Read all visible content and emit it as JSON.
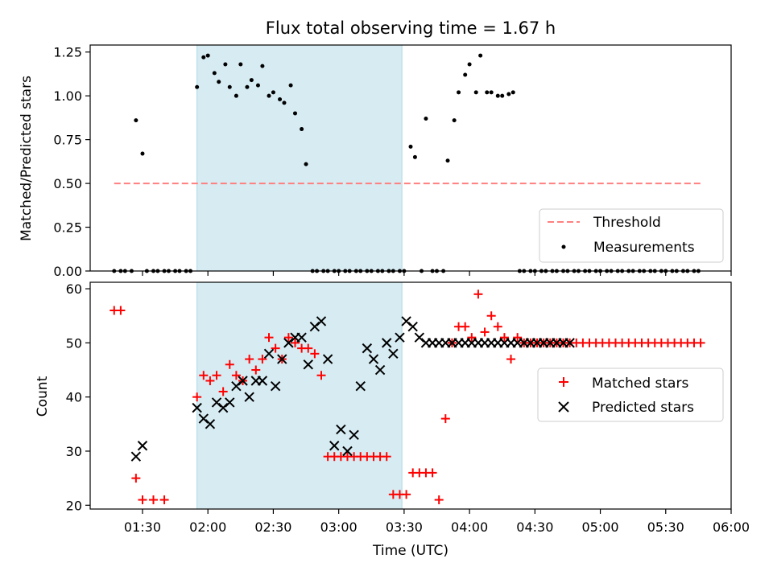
{
  "chart_data": [
    {
      "type": "scatter",
      "title": "Flux total observing time = 1.67 h",
      "xlabel": "",
      "ylabel": "Matched/Predicted stars",
      "ylim": [
        0,
        1.29
      ],
      "yticks": [
        "0.00",
        "0.25",
        "0.50",
        "0.75",
        "1.00",
        "1.25"
      ],
      "xaxis_ticklabels_visible": false,
      "legend_position": "lower right",
      "shaded_span": {
        "start": "01:55",
        "end": "03:29",
        "color": "#add8e6"
      },
      "threshold": {
        "name": "Threshold",
        "value": 0.5,
        "x_start": "01:17",
        "x_end": "05:46",
        "color": "#ff7f7f",
        "style": "dashed"
      },
      "series": [
        {
          "name": "Measurements",
          "marker": "dot",
          "color": "#000000",
          "x": [
            "01:17",
            "01:20",
            "01:22",
            "01:25",
            "01:27",
            "01:30",
            "01:32",
            "01:35",
            "01:37",
            "01:40",
            "01:42",
            "01:45",
            "01:47",
            "01:50",
            "01:52",
            "01:55",
            "01:58",
            "02:00",
            "02:03",
            "02:05",
            "02:08",
            "02:10",
            "02:13",
            "02:15",
            "02:18",
            "02:20",
            "02:23",
            "02:25",
            "02:28",
            "02:30",
            "02:33",
            "02:35",
            "02:38",
            "02:40",
            "02:43",
            "02:45",
            "02:48",
            "02:50",
            "02:53",
            "02:55",
            "02:58",
            "03:00",
            "03:03",
            "03:05",
            "03:08",
            "03:10",
            "03:13",
            "03:15",
            "03:18",
            "03:20",
            "03:23",
            "03:25",
            "03:28",
            "03:30",
            "03:33",
            "03:35",
            "03:38",
            "03:40",
            "03:43",
            "03:45",
            "03:48",
            "03:50",
            "03:53",
            "03:55",
            "03:58",
            "04:00",
            "04:03",
            "04:05",
            "04:08",
            "04:10",
            "04:13",
            "04:15",
            "04:18",
            "04:20",
            "04:23",
            "04:25",
            "04:28",
            "04:30",
            "04:33",
            "04:35",
            "04:38",
            "04:40",
            "04:43",
            "04:45",
            "04:48",
            "04:50",
            "04:53",
            "04:55",
            "04:58",
            "05:00",
            "05:03",
            "05:05",
            "05:08",
            "05:10",
            "05:13",
            "05:15",
            "05:18",
            "05:20",
            "05:23",
            "05:25",
            "05:28",
            "05:30",
            "05:33",
            "05:35",
            "05:38",
            "05:40",
            "05:43",
            "05:45"
          ],
          "y": [
            0.0,
            0.0,
            0.0,
            0.0,
            0.86,
            0.67,
            0.0,
            0.0,
            0.0,
            0.0,
            0.0,
            0.0,
            0.0,
            0.0,
            0.0,
            1.05,
            1.22,
            1.23,
            1.13,
            1.08,
            1.18,
            1.05,
            1.0,
            1.18,
            1.05,
            1.09,
            1.06,
            1.17,
            1.0,
            1.02,
            0.98,
            0.96,
            1.06,
            0.9,
            0.81,
            0.61,
            0.0,
            0.0,
            0.0,
            0.0,
            0.0,
            0.0,
            0.0,
            0.0,
            0.0,
            0.0,
            0.0,
            0.0,
            0.0,
            0.0,
            0.0,
            0.0,
            0.0,
            0.0,
            0.71,
            0.65,
            0.0,
            0.87,
            0.0,
            0.0,
            0.0,
            0.63,
            0.86,
            1.02,
            1.12,
            1.18,
            1.02,
            1.23,
            1.02,
            1.02,
            1.0,
            1.0,
            1.01,
            1.02,
            0.0,
            0.0,
            0.0,
            0.0,
            0.0,
            0.0,
            0.0,
            0.0,
            0.0,
            0.0,
            0.0,
            0.0,
            0.0,
            0.0,
            0.0,
            0.0,
            0.0,
            0.0,
            0.0,
            0.0,
            0.0,
            0.0,
            0.0,
            0.0,
            0.0,
            0.0,
            0.0,
            0.0,
            0.0,
            0.0,
            0.0,
            0.0,
            0.0,
            0.0
          ]
        }
      ]
    },
    {
      "type": "scatter",
      "title": "",
      "xlabel": "Time (UTC)",
      "ylabel": "Count",
      "ylim": [
        19.3,
        61.2
      ],
      "yticks": [
        "20",
        "30",
        "40",
        "50",
        "60"
      ],
      "xticks": [
        "01:30",
        "02:00",
        "02:30",
        "03:00",
        "03:30",
        "04:00",
        "04:30",
        "05:00",
        "05:30",
        "06:00"
      ],
      "xlim": [
        "01:06",
        "06:00"
      ],
      "legend_position": "center right",
      "shaded_span": {
        "start": "01:55",
        "end": "03:29",
        "color": "#add8e6"
      },
      "series": [
        {
          "name": "Matched stars",
          "marker": "plus",
          "color": "#ff0000",
          "x": [
            "01:17",
            "01:20",
            "01:27",
            "01:30",
            "01:35",
            "01:40",
            "01:55",
            "01:58",
            "02:01",
            "02:04",
            "02:07",
            "02:10",
            "02:13",
            "02:16",
            "02:19",
            "02:22",
            "02:25",
            "02:28",
            "02:31",
            "02:34",
            "02:37",
            "02:40",
            "02:43",
            "02:46",
            "02:49",
            "02:52",
            "02:55",
            "02:58",
            "03:01",
            "03:04",
            "03:07",
            "03:10",
            "03:13",
            "03:16",
            "03:19",
            "03:22",
            "03:25",
            "03:28",
            "03:31",
            "03:34",
            "03:37",
            "03:40",
            "03:43",
            "03:46",
            "03:49",
            "03:52",
            "03:55",
            "03:58",
            "04:01",
            "04:04",
            "04:07",
            "04:10",
            "04:13",
            "04:16",
            "04:19",
            "04:22",
            "04:25",
            "04:28",
            "04:31",
            "04:34",
            "04:37",
            "04:40",
            "04:43",
            "04:46",
            "04:49",
            "04:52",
            "04:55",
            "04:58",
            "05:01",
            "05:04",
            "05:07",
            "05:10",
            "05:13",
            "05:16",
            "05:19",
            "05:22",
            "05:25",
            "05:28",
            "05:31",
            "05:34",
            "05:37",
            "05:40",
            "05:43",
            "05:46"
          ],
          "y": [
            56,
            56,
            25,
            21,
            21,
            21,
            40,
            44,
            43,
            44,
            41,
            46,
            44,
            43,
            47,
            45,
            47,
            51,
            49,
            47,
            51,
            50,
            49,
            49,
            48,
            44,
            29,
            29,
            29,
            29,
            29,
            29,
            29,
            29,
            29,
            29,
            22,
            22,
            22,
            26,
            26,
            26,
            26,
            21,
            36,
            50,
            53,
            53,
            51,
            59,
            52,
            55,
            53,
            51,
            47,
            51,
            50,
            50,
            50,
            50,
            50,
            50,
            50,
            50,
            50,
            50,
            50,
            50,
            50,
            50,
            50,
            50,
            50,
            50,
            50,
            50,
            50,
            50,
            50,
            50,
            50,
            50,
            50,
            50
          ]
        },
        {
          "name": "Predicted stars",
          "marker": "x",
          "color": "#000000",
          "x": [
            "01:27",
            "01:30",
            "01:55",
            "01:58",
            "02:01",
            "02:04",
            "02:07",
            "02:10",
            "02:13",
            "02:16",
            "02:19",
            "02:22",
            "02:25",
            "02:28",
            "02:31",
            "02:34",
            "02:37",
            "02:40",
            "02:43",
            "02:46",
            "02:49",
            "02:52",
            "02:55",
            "02:58",
            "03:01",
            "03:04",
            "03:07",
            "03:10",
            "03:13",
            "03:16",
            "03:19",
            "03:22",
            "03:25",
            "03:28",
            "03:31",
            "03:34",
            "03:37",
            "03:40",
            "03:43",
            "03:46",
            "03:49",
            "03:52",
            "03:55",
            "03:58",
            "04:01",
            "04:04",
            "04:07",
            "04:10",
            "04:13",
            "04:16",
            "04:19",
            "04:22",
            "04:25",
            "04:28",
            "04:31",
            "04:34",
            "04:37",
            "04:40",
            "04:43",
            "04:46"
          ],
          "y": [
            29,
            31,
            38,
            36,
            35,
            39,
            38,
            39,
            42,
            43,
            40,
            43,
            43,
            48,
            42,
            47,
            50,
            51,
            51,
            46,
            53,
            54,
            47,
            31,
            34,
            30,
            33,
            42,
            49,
            47,
            45,
            50,
            48,
            51,
            54,
            53,
            51,
            50,
            50,
            50,
            50,
            50,
            50,
            50,
            50,
            50,
            50,
            50,
            50,
            50,
            50,
            50,
            50,
            50,
            50,
            50,
            50,
            50,
            50,
            50
          ]
        }
      ]
    }
  ]
}
